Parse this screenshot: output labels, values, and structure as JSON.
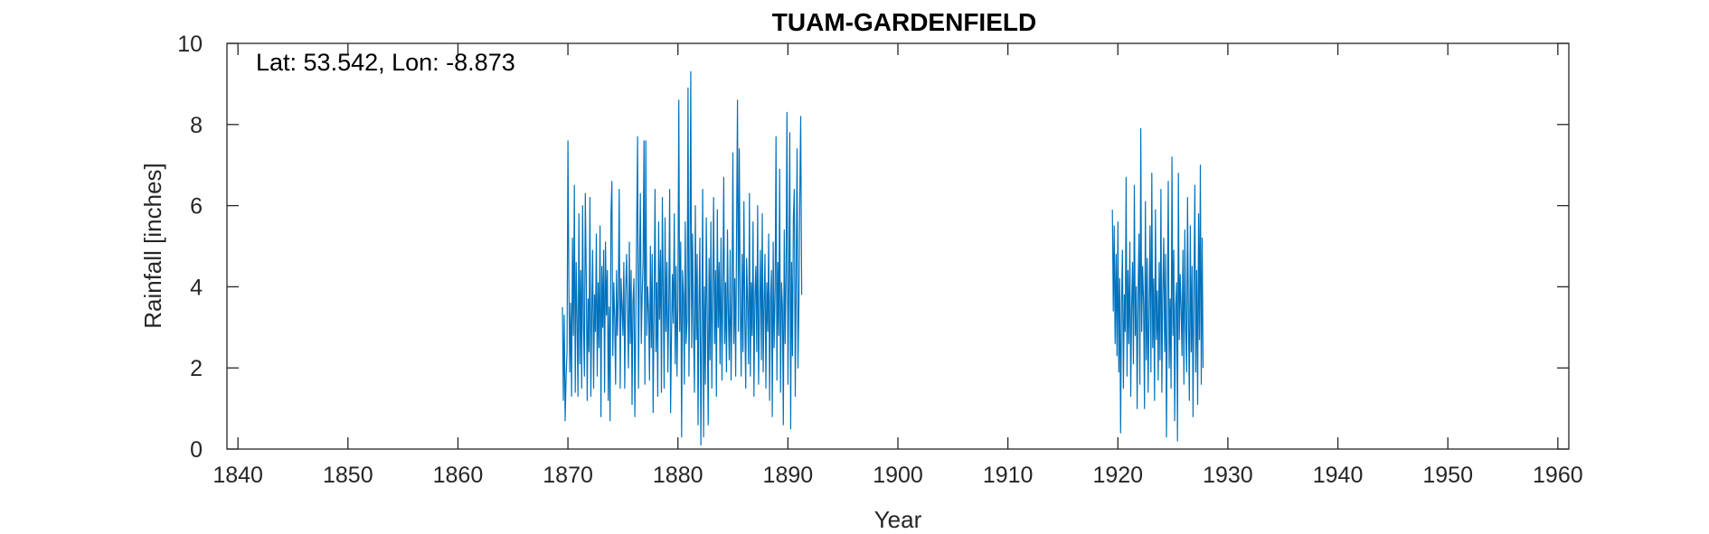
{
  "chart_data": {
    "type": "line",
    "title": "TUAM-GARDENFIELD",
    "annotation": "Lat: 53.542, Lon: -8.873",
    "xlabel": "Year",
    "ylabel": "Rainfall [inches]",
    "xlim": [
      1839,
      1961
    ],
    "ylim": [
      0,
      10
    ],
    "x_ticks": [
      1840,
      1850,
      1860,
      1870,
      1880,
      1890,
      1900,
      1910,
      1920,
      1930,
      1940,
      1950,
      1960
    ],
    "y_ticks": [
      0,
      2,
      4,
      6,
      8,
      10
    ],
    "grid": false,
    "colors": {
      "series": "#0072BD",
      "secondary": "#D95319",
      "axis": "#262626"
    },
    "series": [
      {
        "color": "#0072BD",
        "x_start": 1869.5,
        "x_step": 0.08333,
        "values": [
          3.5,
          1.2,
          3.3,
          0.7,
          1.8,
          2.4,
          7.6,
          4.1,
          1.9,
          3.6,
          1.3,
          5.2,
          2.8,
          6.5,
          1.4,
          4.6,
          3.2,
          1.3,
          5.8,
          2.1,
          4.4,
          1.5,
          6.0,
          3.1,
          1.8,
          6.3,
          4.2,
          1.2,
          3.7,
          2.4,
          6.2,
          1.3,
          3.3,
          4.9,
          1.5,
          3.8,
          2.9,
          5.3,
          1.8,
          4.1,
          2.5,
          5.5,
          0.8,
          4.5,
          3.0,
          4.9,
          1.4,
          5.1,
          3.3,
          4.4,
          1.2,
          3.5,
          0.7,
          5.8,
          6.6,
          2.3,
          4.1,
          3.2,
          1.6,
          4.4,
          2.8,
          3.7,
          6.4,
          1.5,
          4.2,
          3.5,
          2.8,
          4.6,
          1.5,
          3.9,
          4.8,
          3.3,
          2.0,
          5.1,
          2.6,
          4.4,
          1.1,
          3.6,
          4.2,
          0.8,
          3.2,
          5.4,
          7.7,
          1.5,
          4.3,
          6.3,
          2.6,
          3.8,
          4.6,
          7.6,
          1.6,
          7.6,
          2.8,
          4.0,
          3.4,
          1.7,
          5.0,
          2.5,
          4.8,
          0.9,
          3.6,
          6.4,
          2.4,
          4.1,
          1.3,
          5.6,
          3.2,
          4.9,
          1.4,
          6.2,
          3.8,
          1.5,
          5.7,
          2.9,
          4.6,
          1.9,
          3.5,
          6.4,
          0.9,
          2.8,
          4.3,
          3.1,
          5.8,
          2.1,
          4.5,
          1.8,
          3.6,
          8.6,
          2.9,
          5.1,
          0.3,
          4.4,
          3.8,
          1.6,
          5.6,
          2.6,
          3.2,
          8.9,
          1.8,
          4.1,
          9.3,
          2.5,
          5.3,
          3.1,
          1.4,
          6.0,
          2.7,
          4.8,
          0.6,
          3.5,
          5.2,
          0.1,
          2.9,
          6.4,
          0.3,
          4.0,
          1.6,
          5.7,
          3.2,
          0.6,
          4.7,
          2.2,
          5.6,
          1.5,
          3.8,
          6.2,
          2.6,
          4.4,
          1.3,
          5.9,
          3.0,
          4.6,
          2.1,
          5.2,
          1.7,
          3.9,
          6.7,
          2.6,
          4.1,
          1.9,
          5.4,
          3.3,
          2.2,
          4.9,
          1.7,
          3.6,
          7.3,
          2.6,
          4.2,
          1.8,
          5.5,
          8.6,
          2.9,
          7.4,
          3.7,
          1.8,
          4.8,
          2.4,
          6.1,
          3.2,
          1.5,
          4.7,
          3.5,
          2.1,
          6.3,
          1.8,
          4.1,
          2.8,
          5.6,
          1.3,
          3.8,
          4.5,
          2.4,
          6.0,
          1.6,
          3.4,
          4.9,
          2.2,
          5.8,
          1.9,
          3.6,
          4.8,
          1.5,
          4.1,
          2.9,
          5.3,
          1.2,
          3.7,
          4.4,
          0.8,
          5.1,
          2.5,
          3.9,
          7.7,
          1.7,
          4.6,
          2.8,
          6.9,
          1.4,
          4.1,
          3.5,
          0.6,
          5.4,
          2.6,
          4.3,
          8.3,
          1.6,
          3.9,
          7.8,
          0.5,
          4.6,
          2.3,
          5.7,
          6.4,
          1.3,
          4.4,
          7.4,
          2.0,
          3.5,
          6.2,
          8.2,
          3.8
        ]
      },
      {
        "color": "#0072BD",
        "x_start": 1919.5,
        "x_step": 0.08333,
        "values": [
          5.9,
          3.4,
          5.5,
          2.6,
          4.8,
          2.3,
          5.6,
          1.9,
          4.2,
          0.4,
          3.6,
          4.9,
          1.5,
          3.8,
          2.9,
          6.7,
          1.8,
          4.4,
          2.6,
          5.1,
          1.3,
          3.5,
          4.6,
          2.1,
          6.5,
          2.8,
          4.0,
          1.0,
          3.8,
          5.3,
          1.6,
          7.9,
          2.9,
          4.5,
          3.6,
          1.0,
          6.1,
          2.2,
          4.7,
          1.4,
          3.2,
          5.5,
          1.9,
          6.8,
          2.5,
          4.2,
          1.2,
          5.9,
          2.7,
          3.9,
          1.7,
          4.6,
          2.2,
          6.4,
          1.4,
          3.8,
          5.2,
          2.4,
          4.8,
          0.3,
          3.5,
          6.6,
          2.0,
          3.7,
          1.5,
          7.2,
          2.8,
          4.9,
          0.7,
          3.5,
          4.1,
          0.2,
          6.8,
          2.7,
          4.3,
          3.5,
          2.3,
          4.9,
          1.6,
          5.4,
          3.0,
          1.9,
          6.2,
          3.3,
          1.2,
          5.5,
          2.4,
          4.5,
          0.8,
          4.0,
          6.5,
          1.9,
          4.4,
          1.1,
          5.8,
          2.7,
          7.0,
          1.6,
          5.2,
          2.0
        ]
      }
    ]
  }
}
